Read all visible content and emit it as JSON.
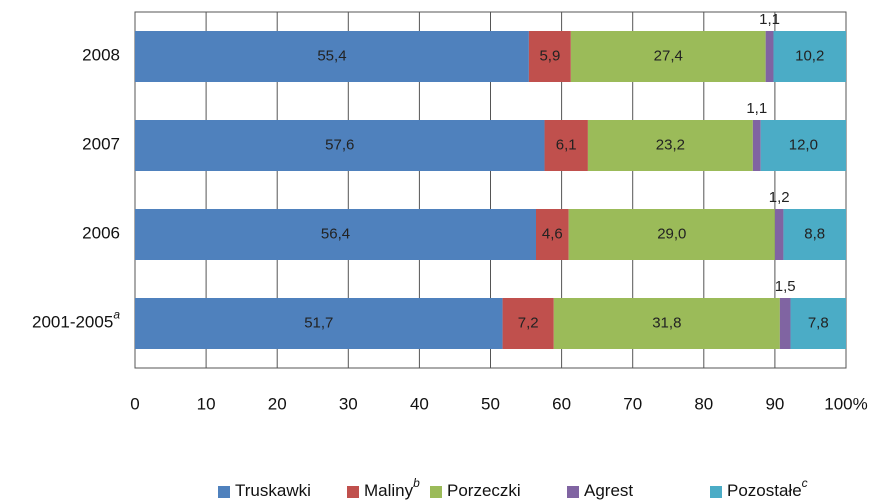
{
  "chart_data": {
    "type": "stacked_barh",
    "categories": [
      "2008",
      "2007",
      "2006",
      "2001-2005"
    ],
    "category_notes": [
      null,
      null,
      null,
      "a"
    ],
    "series": [
      {
        "name": "Truskawki",
        "color": "#4f81bd",
        "values": [
          55.4,
          57.6,
          56.4,
          51.7
        ],
        "value_labels": [
          "55,4",
          "57,6",
          "56,4",
          "51,7"
        ]
      },
      {
        "name": "Maliny",
        "note": "b",
        "color": "#c0504d",
        "values": [
          5.9,
          6.1,
          4.6,
          7.2
        ],
        "value_labels": [
          "5,9",
          "6,1",
          "4,6",
          "7,2"
        ]
      },
      {
        "name": "Porzeczki",
        "color": "#9bbb59",
        "values": [
          27.4,
          23.2,
          29.0,
          31.8
        ],
        "value_labels": [
          "27,4",
          "23,2",
          "29,0",
          "31,8"
        ]
      },
      {
        "name": "Agrest",
        "color": "#8064a2",
        "values": [
          1.1,
          1.1,
          1.2,
          1.5
        ],
        "value_labels": [
          "1,1",
          "1,1",
          "1,2",
          "1,5"
        ]
      },
      {
        "name": "Pozostałe",
        "note": "c",
        "color": "#4bacc6",
        "values": [
          10.2,
          12.0,
          8.8,
          7.8
        ],
        "value_labels": [
          "10,2",
          "12,0",
          "8,8",
          "7,8"
        ]
      }
    ],
    "xlim": [
      0,
      100
    ],
    "xticks": [
      0,
      10,
      20,
      30,
      40,
      50,
      60,
      70,
      80,
      90,
      {
        "value": 100,
        "label": "100%"
      }
    ],
    "grid": true,
    "legend": "bottom"
  }
}
